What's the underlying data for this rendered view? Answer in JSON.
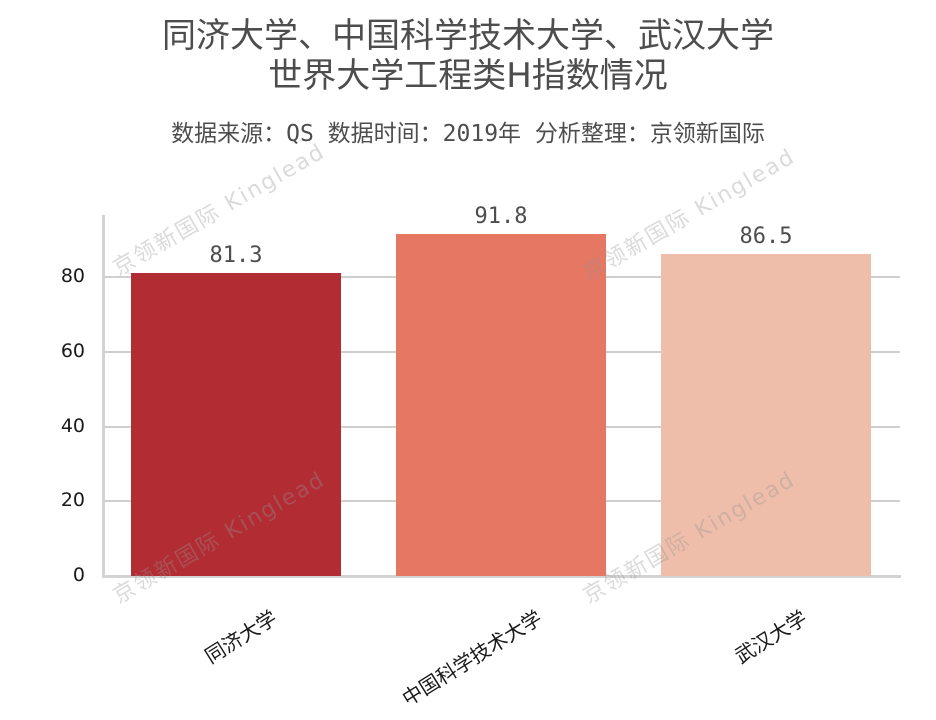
{
  "title_line1": "同济大学、中国科学技术大学、武汉大学",
  "title_line2": "世界大学工程类H指数情况",
  "subtitle": "数据来源：QS 数据时间：2019年 分析整理：京领新国际",
  "watermark": "京领新国际 Kinglead",
  "y_ticks": [
    "0",
    "20",
    "40",
    "60",
    "80"
  ],
  "bars": [
    {
      "label": "同济大学",
      "value": 81.3,
      "value_label": "81.3",
      "color": "#b22c33"
    },
    {
      "label": "中国科学技术大学",
      "value": 91.8,
      "value_label": "91.8",
      "color": "#e57763"
    },
    {
      "label": "武汉大学",
      "value": 86.5,
      "value_label": "86.5",
      "color": "#efbeaa"
    }
  ],
  "chart_data": {
    "type": "bar",
    "title": "同济大学、中国科学技术大学、武汉大学 世界大学工程类H指数情况",
    "subtitle": "数据来源：QS 数据时间：2019年 分析整理：京领新国际",
    "categories": [
      "同济大学",
      "中国科学技术大学",
      "武汉大学"
    ],
    "values": [
      81.3,
      91.8,
      86.5
    ],
    "colors": [
      "#b22c33",
      "#e57763",
      "#efbeaa"
    ],
    "xlabel": "",
    "ylabel": "",
    "ylim": [
      0,
      97
    ],
    "yticks": [
      0,
      20,
      40,
      60,
      80
    ],
    "grid": "horizontal",
    "data_labels": true,
    "legend": "none"
  }
}
